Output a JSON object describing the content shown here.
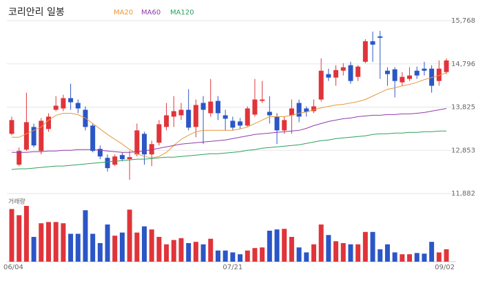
{
  "chart_data": {
    "type": "candlestick",
    "title": "코리안리 일봉",
    "categories": [
      "06/04",
      null,
      null,
      null,
      null,
      null,
      null,
      null,
      null,
      null,
      null,
      null,
      null,
      null,
      null,
      null,
      null,
      null,
      null,
      null,
      null,
      null,
      null,
      null,
      null,
      null,
      null,
      null,
      null,
      null,
      "07/21",
      null,
      null,
      null,
      null,
      null,
      null,
      null,
      null,
      null,
      null,
      null,
      null,
      null,
      null,
      null,
      null,
      null,
      null,
      null,
      null,
      null,
      null,
      null,
      null,
      null,
      null,
      null,
      null,
      "09/02"
    ],
    "open": [
      13224,
      12530,
      12870,
      13378,
      12839,
      13332,
      13764,
      13795,
      14026,
      13918,
      13764,
      13409,
      12885,
      12684,
      12530,
      12746,
      12654,
      12761,
      13224,
      12761,
      13024,
      13378,
      13610,
      13640,
      13764,
      13378,
      13918,
      13687,
      13964,
      13640,
      13517,
      13502,
      13409,
      13656,
      13964,
      13718,
      13610,
      13301,
      13640,
      13918,
      13795,
      13733,
      13995,
      14566,
      14488,
      14643,
      14766,
      14504,
      14843,
      15306,
      15414,
      14643,
      14674,
      14381,
      14458,
      14643,
      14689,
      14689,
      14411,
      14612
    ],
    "high": [
      13610,
      12916,
      14149,
      13455,
      13579,
      13687,
      14072,
      14103,
      14350,
      13995,
      13841,
      13455,
      12962,
      12761,
      12761,
      12808,
      12839,
      13455,
      13270,
      13070,
      13533,
      13918,
      14072,
      13918,
      14227,
      13995,
      14072,
      14458,
      14072,
      13764,
      13610,
      13579,
      13841,
      14458,
      14412,
      14072,
      13687,
      13610,
      13995,
      13995,
      13841,
      13995,
      14920,
      14689,
      14766,
      14812,
      14843,
      14766,
      15352,
      15522,
      15537,
      14720,
      14720,
      14612,
      14720,
      14735,
      14843,
      14766,
      14874,
      14920
    ],
    "low": [
      13193,
      12499,
      12839,
      12916,
      12762,
      13270,
      13733,
      13733,
      13764,
      13687,
      13301,
      12808,
      12654,
      12376,
      12499,
      12607,
      12191,
      12715,
      12530,
      12499,
      12962,
      13301,
      13378,
      13533,
      13301,
      13147,
      12993,
      13610,
      13533,
      13301,
      13301,
      13332,
      13378,
      13610,
      13918,
      13455,
      12993,
      13224,
      13224,
      13486,
      13610,
      13687,
      13949,
      14412,
      14304,
      14535,
      14350,
      14411,
      14812,
      14843,
      14458,
      14304,
      14041,
      14304,
      14411,
      14458,
      14535,
      14150,
      14304,
      14566
    ],
    "close": [
      13533,
      12839,
      13486,
      12962,
      13517,
      13610,
      13856,
      14026,
      13933,
      13795,
      13378,
      12839,
      12715,
      12453,
      12715,
      12654,
      12700,
      13301,
      12761,
      12993,
      13440,
      13640,
      13733,
      13764,
      13363,
      13872,
      13764,
      13949,
      13687,
      13563,
      13363,
      13409,
      13795,
      13995,
      13995,
      13640,
      13301,
      13533,
      13795,
      13610,
      13718,
      13841,
      14643,
      14488,
      14658,
      14720,
      14411,
      14735,
      15306,
      15229,
      15383,
      14566,
      14411,
      14504,
      14535,
      14535,
      14643,
      14304,
      14689,
      14874
    ],
    "up_color": "#e0343a",
    "down_color": "#2b56c6",
    "ylim": [
      11882,
      15768
    ],
    "yticks": [
      {
        "value": 15768,
        "label": "15,768"
      },
      {
        "value": 14796,
        "label": "14,796"
      },
      {
        "value": 13825,
        "label": "13,825"
      },
      {
        "value": 12853,
        "label": "12,853"
      },
      {
        "value": 11882,
        "label": "11,882"
      }
    ],
    "grid": true,
    "moving_averages": [
      {
        "name": "MA20",
        "color": "#e8963c",
        "values": [
          13147,
          13147,
          13224,
          13301,
          13378,
          13532,
          13640,
          13686,
          13686,
          13655,
          13579,
          13455,
          13332,
          13209,
          13101,
          12993,
          12870,
          12777,
          12715,
          12685,
          12715,
          12808,
          12962,
          13101,
          13193,
          13270,
          13301,
          13301,
          13301,
          13301,
          13301,
          13332,
          13378,
          13455,
          13532,
          13610,
          13610,
          13610,
          13640,
          13686,
          13717,
          13763,
          13810,
          13841,
          13872,
          13887,
          13918,
          13949,
          13995,
          14072,
          14149,
          14226,
          14257,
          14303,
          14334,
          14380,
          14442,
          14489,
          14535,
          14596
        ]
      },
      {
        "name": "MA60",
        "color": "#8e3aa8",
        "values": [
          12808,
          12808,
          12808,
          12823,
          12823,
          12839,
          12839,
          12854,
          12854,
          12870,
          12870,
          12870,
          12854,
          12839,
          12823,
          12808,
          12808,
          12823,
          12839,
          12870,
          12900,
          12931,
          12962,
          12993,
          13008,
          13024,
          13039,
          13054,
          13070,
          13085,
          13116,
          13147,
          13178,
          13209,
          13224,
          13240,
          13255,
          13270,
          13286,
          13301,
          13347,
          13409,
          13455,
          13502,
          13532,
          13563,
          13579,
          13610,
          13625,
          13640,
          13640,
          13656,
          13656,
          13671,
          13671,
          13686,
          13702,
          13733,
          13763,
          13794
        ]
      },
      {
        "name": "MA120",
        "color": "#2aa05a",
        "values": [
          12422,
          12438,
          12438,
          12453,
          12469,
          12484,
          12499,
          12499,
          12515,
          12530,
          12546,
          12561,
          12577,
          12592,
          12607,
          12623,
          12638,
          12654,
          12654,
          12669,
          12685,
          12700,
          12700,
          12715,
          12731,
          12746,
          12762,
          12777,
          12777,
          12793,
          12808,
          12823,
          12854,
          12870,
          12900,
          12916,
          12931,
          12947,
          12962,
          12978,
          13008,
          13039,
          13070,
          13085,
          13116,
          13131,
          13147,
          13162,
          13178,
          13209,
          13224,
          13224,
          13240,
          13240,
          13255,
          13255,
          13270,
          13270,
          13286,
          13286
        ]
      }
    ],
    "volume": {
      "label": "거래량",
      "ylim": [
        0,
        100
      ],
      "values": [
        85,
        75,
        90,
        40,
        62,
        64,
        64,
        62,
        45,
        45,
        83,
        45,
        30,
        60,
        42,
        47,
        84,
        47,
        57,
        52,
        40,
        28,
        35,
        38,
        30,
        32,
        28,
        37,
        18,
        18,
        15,
        12,
        18,
        22,
        23,
        50,
        52,
        53,
        40,
        23,
        15,
        28,
        60,
        43,
        33,
        30,
        28,
        28,
        48,
        48,
        20,
        28,
        15,
        12,
        12,
        14,
        13,
        32,
        15,
        20
      ]
    }
  }
}
